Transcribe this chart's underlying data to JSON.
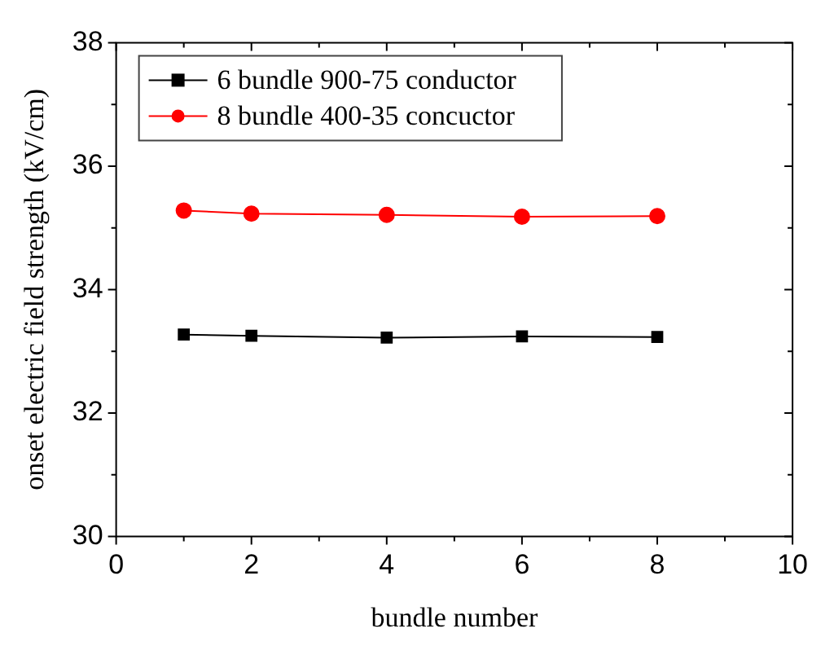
{
  "chart_data": {
    "type": "line",
    "xlabel": "bundle number",
    "ylabel": "onset electric field strength (kV/cm)",
    "x": [
      1,
      2,
      4,
      6,
      8
    ],
    "series": [
      {
        "name": "6 bundle 900-75 conductor",
        "color": "#000000",
        "marker": "square",
        "values": [
          33.27,
          33.25,
          33.22,
          33.24,
          33.23
        ]
      },
      {
        "name": "8 bundle 400-35 concuctor",
        "color": "#ff0000",
        "marker": "circle",
        "values": [
          35.28,
          35.23,
          35.21,
          35.18,
          35.19
        ]
      }
    ],
    "xlim": [
      0,
      10
    ],
    "xticks": [
      0,
      2,
      4,
      6,
      8,
      10
    ],
    "ylim": [
      30,
      38
    ],
    "yticks": [
      30,
      32,
      34,
      36,
      38
    ],
    "grid": false,
    "legend": "top left"
  }
}
